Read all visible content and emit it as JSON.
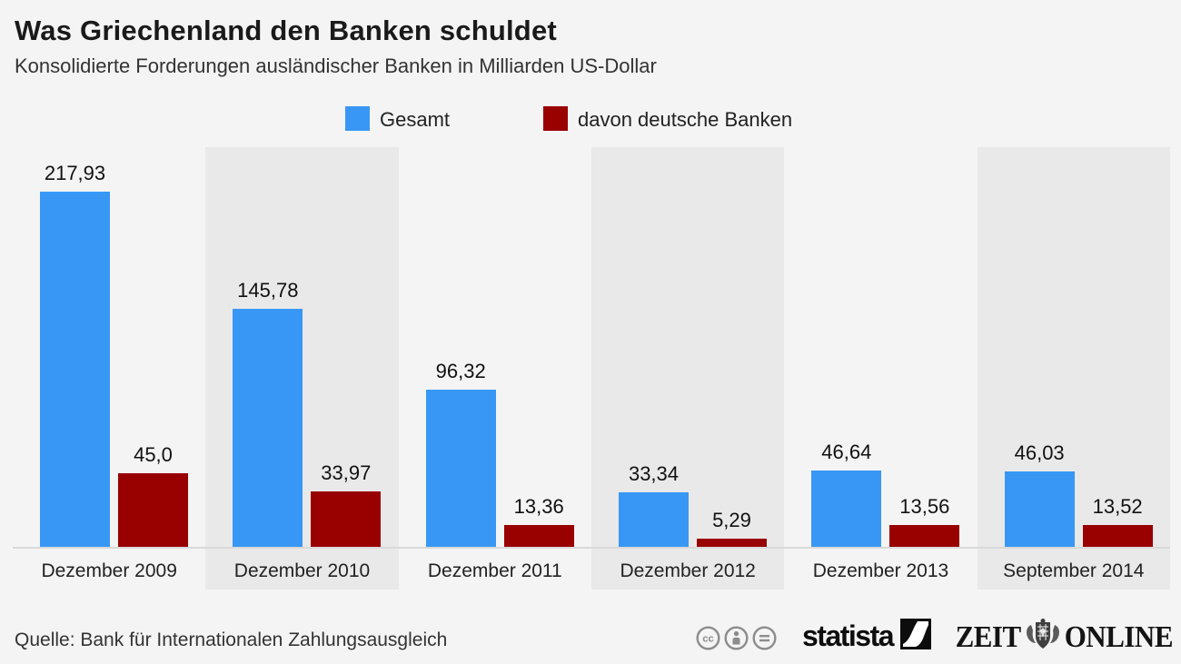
{
  "header": {
    "title": "Was Griechenland den Banken schuldet",
    "subtitle": "Konsolidierte Forderungen ausländischer Banken in Milliarden US-Dollar"
  },
  "legend": [
    {
      "label": "Gesamt",
      "color": "#3897f4"
    },
    {
      "label": "davon deutsche Banken",
      "color": "#990000"
    }
  ],
  "chart_data": {
    "type": "bar",
    "title": "Was Griechenland den Banken schuldet",
    "subtitle": "Konsolidierte Forderungen ausländischer Banken in Milliarden US-Dollar",
    "unit": "Milliarden US-Dollar",
    "categories": [
      "Dezember 2009",
      "Dezember 2010",
      "Dezember 2011",
      "Dezember 2012",
      "Dezember 2013",
      "September 2014"
    ],
    "series": [
      {
        "name": "Gesamt",
        "color": "#3897f4",
        "values": [
          217.93,
          145.78,
          96.32,
          33.34,
          46.64,
          46.03
        ],
        "display": [
          "217,93",
          "145,78",
          "96,32",
          "33,34",
          "46,64",
          "46,03"
        ]
      },
      {
        "name": "davon deutsche Banken",
        "color": "#990000",
        "values": [
          45.0,
          33.97,
          13.36,
          5.29,
          13.56,
          13.52
        ],
        "display": [
          "45,0",
          "33,97",
          "13,36",
          "5,29",
          "13,56",
          "13,52"
        ]
      }
    ],
    "ylim": [
      0,
      230
    ],
    "grid": false,
    "axes_visible": false,
    "value_labels": true,
    "legend_position": "top",
    "background_stripes": "alternating columns #e9e9e9 on #f4f4f4"
  },
  "footer": {
    "source": "Quelle: Bank für Internationalen Zahlungsausgleich",
    "license_icons": [
      "cc-icon",
      "attribution-icon",
      "no-derivatives-icon"
    ],
    "statista_label": "statista",
    "zeit_left": "ZEIT",
    "zeit_right": "ONLINE"
  }
}
